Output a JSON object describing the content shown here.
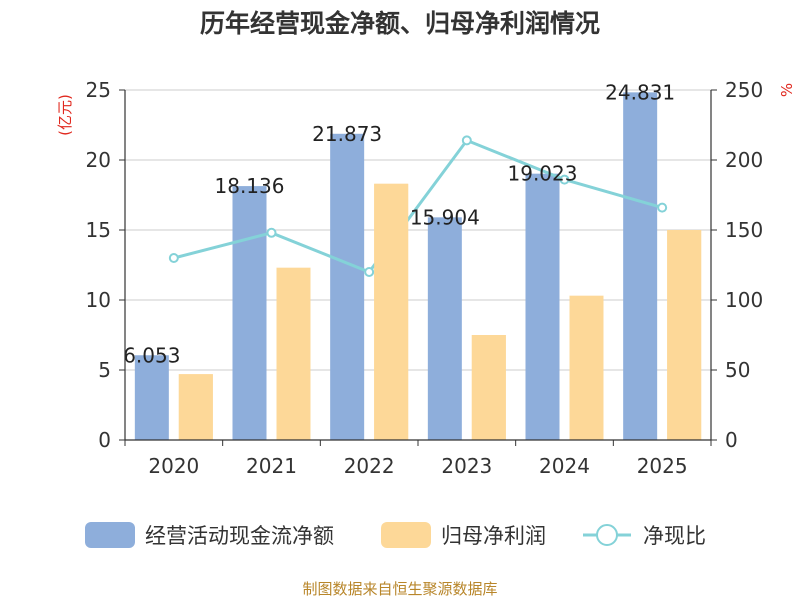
{
  "title": "历年经营现金净额、归母净利润情况",
  "source": "制图数据来自恒生聚源数据库",
  "chart_data": {
    "type": "bar",
    "categories": [
      "2020",
      "2021",
      "2022",
      "2023",
      "2024",
      "2025"
    ],
    "series": [
      {
        "name": "经营活动现金流净额",
        "type": "bar",
        "axis": "left",
        "color": "#8eaedb",
        "values": [
          6.053,
          18.136,
          21.873,
          15.904,
          19.023,
          24.831
        ],
        "data_labels": [
          "6.053",
          "18.136",
          "21.873",
          "15.904",
          "19.023",
          "24.831"
        ]
      },
      {
        "name": "归母净利润",
        "type": "bar",
        "axis": "left",
        "color": "#fdd898",
        "values": [
          4.7,
          12.3,
          18.3,
          7.5,
          10.3,
          15.0
        ]
      },
      {
        "name": "净现比",
        "type": "line",
        "axis": "right",
        "color": "#84d2d8",
        "values": [
          130,
          148,
          120,
          214,
          186,
          166
        ]
      }
    ],
    "ylabel_left": "(亿元)",
    "ylabel_right": "%",
    "ylim_left": [
      0,
      25
    ],
    "ylim_right": [
      0,
      250
    ],
    "yticks_left": [
      0,
      5,
      10,
      15,
      20,
      25
    ],
    "yticks_right": [
      0,
      50,
      100,
      150,
      200,
      250
    ],
    "grid": true,
    "legend_position": "bottom"
  }
}
